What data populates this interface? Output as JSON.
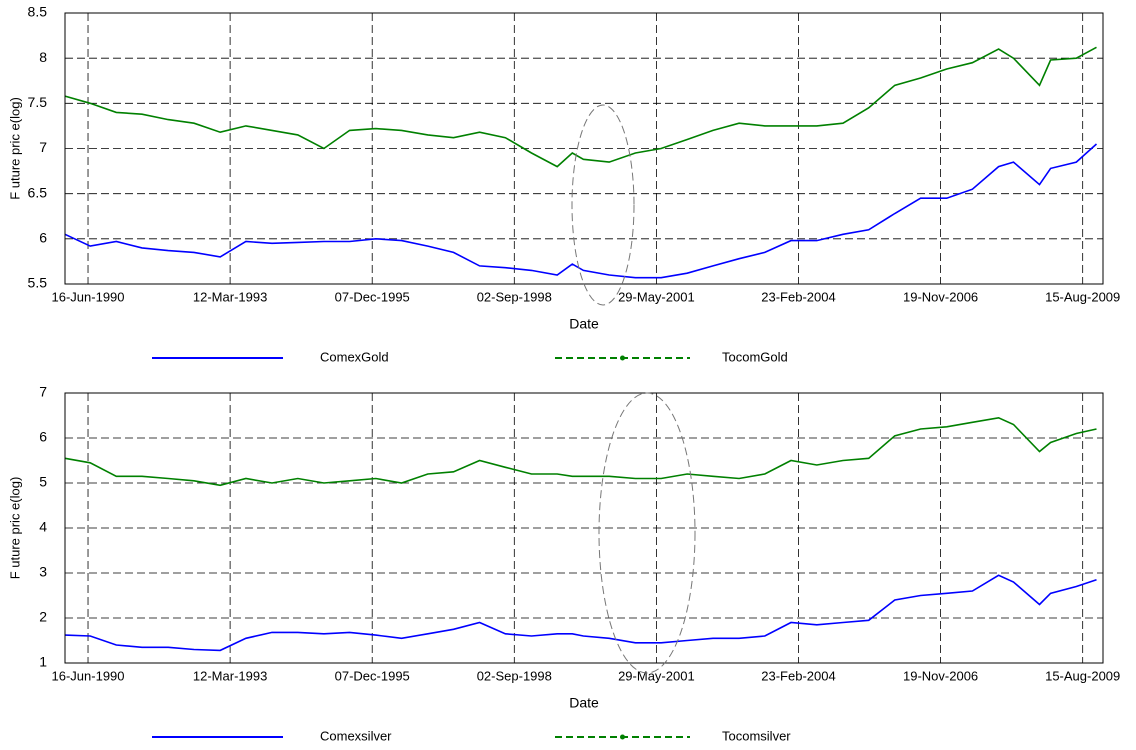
{
  "chart_data": [
    {
      "type": "line",
      "xlabel": "Date",
      "ylabel": "F uture  pric e(log)",
      "xlim": [
        "1990-01-05",
        "2010-01-05"
      ],
      "xticks": [
        {
          "value": "1990-06-16",
          "label": "16-Jun-1990"
        },
        {
          "value": "1993-03-12",
          "label": "12-Mar-1993"
        },
        {
          "value": "1995-12-07",
          "label": "07-Dec-1995"
        },
        {
          "value": "1998-09-02",
          "label": "02-Sep-1998"
        },
        {
          "value": "2001-05-29",
          "label": "29-May-2001"
        },
        {
          "value": "2004-02-23",
          "label": "23-Feb-2004"
        },
        {
          "value": "2006-11-19",
          "label": "19-Nov-2006"
        },
        {
          "value": "2009-08-15",
          "label": "15-Aug-2009"
        }
      ],
      "ylim": [
        5.5,
        8.5
      ],
      "yticks": [
        5.5,
        6,
        6.5,
        7,
        7.5,
        8,
        8.5
      ],
      "grid": true,
      "legend": "below",
      "x": [
        "1990-01-05",
        "1990-07-01",
        "1991-01-01",
        "1991-07-01",
        "1992-01-01",
        "1992-07-01",
        "1993-01-01",
        "1993-07-01",
        "1994-01-01",
        "1994-07-01",
        "1995-01-01",
        "1995-07-01",
        "1996-01-01",
        "1996-07-01",
        "1997-01-01",
        "1997-07-01",
        "1998-01-01",
        "1998-07-01",
        "1999-01-01",
        "1999-07-01",
        "1999-10-15",
        "2000-01-01",
        "2000-07-01",
        "2001-01-01",
        "2001-07-01",
        "2002-01-01",
        "2002-07-01",
        "2003-01-01",
        "2003-07-01",
        "2004-01-01",
        "2004-07-01",
        "2005-01-01",
        "2005-07-01",
        "2006-01-01",
        "2006-07-01",
        "2007-01-01",
        "2007-07-01",
        "2008-01-01",
        "2008-04-15",
        "2008-10-15",
        "2009-01-01",
        "2009-07-01",
        "2009-11-20"
      ],
      "series": [
        {
          "name": "ComexGold",
          "color": "#0000ff",
          "linestyle": "solid",
          "marker": "none",
          "values": [
            6.05,
            5.92,
            5.97,
            5.9,
            5.87,
            5.85,
            5.8,
            5.97,
            5.95,
            5.96,
            5.97,
            5.97,
            6.0,
            5.98,
            5.92,
            5.85,
            5.7,
            5.68,
            5.65,
            5.6,
            5.72,
            5.65,
            5.6,
            5.57,
            5.57,
            5.62,
            5.7,
            5.78,
            5.85,
            5.98,
            5.98,
            6.05,
            6.1,
            6.28,
            6.45,
            6.45,
            6.55,
            6.8,
            6.85,
            6.6,
            6.78,
            6.85,
            7.05
          ]
        },
        {
          "name": "TocomGold",
          "color": "#008000",
          "linestyle": "dashed",
          "marker": "dot",
          "values": [
            7.58,
            7.5,
            7.4,
            7.38,
            7.32,
            7.28,
            7.18,
            7.25,
            7.2,
            7.15,
            7.0,
            7.2,
            7.22,
            7.2,
            7.15,
            7.12,
            7.18,
            7.12,
            6.95,
            6.8,
            6.95,
            6.88,
            6.85,
            6.95,
            7.0,
            7.1,
            7.2,
            7.28,
            7.25,
            7.25,
            7.25,
            7.28,
            7.45,
            7.7,
            7.78,
            7.88,
            7.95,
            8.1,
            8.0,
            7.7,
            7.98,
            8.0,
            8.12
          ]
        }
      ]
    },
    {
      "type": "line",
      "xlabel": "Date",
      "ylabel": "F uture  pric e(log)",
      "xlim": [
        "1990-01-05",
        "2010-01-05"
      ],
      "xticks": [
        {
          "value": "1990-06-16",
          "label": "16-Jun-1990"
        },
        {
          "value": "1993-03-12",
          "label": "12-Mar-1993"
        },
        {
          "value": "1995-12-07",
          "label": "07-Dec-1995"
        },
        {
          "value": "1998-09-02",
          "label": "02-Sep-1998"
        },
        {
          "value": "2001-05-29",
          "label": "29-May-2001"
        },
        {
          "value": "2004-02-23",
          "label": "23-Feb-2004"
        },
        {
          "value": "2006-11-19",
          "label": "19-Nov-2006"
        },
        {
          "value": "2009-08-15",
          "label": "15-Aug-2009"
        }
      ],
      "ylim": [
        1,
        7
      ],
      "yticks": [
        1,
        2,
        3,
        4,
        5,
        6,
        7
      ],
      "grid": true,
      "legend": "below",
      "x": [
        "1990-01-05",
        "1990-07-01",
        "1991-01-01",
        "1991-07-01",
        "1992-01-01",
        "1992-07-01",
        "1993-01-01",
        "1993-07-01",
        "1994-01-01",
        "1994-07-01",
        "1995-01-01",
        "1995-07-01",
        "1996-01-01",
        "1996-07-01",
        "1997-01-01",
        "1997-07-01",
        "1998-01-01",
        "1998-07-01",
        "1999-01-01",
        "1999-07-01",
        "1999-10-15",
        "2000-01-01",
        "2000-07-01",
        "2001-01-01",
        "2001-07-01",
        "2002-01-01",
        "2002-07-01",
        "2003-01-01",
        "2003-07-01",
        "2004-01-01",
        "2004-07-01",
        "2005-01-01",
        "2005-07-01",
        "2006-01-01",
        "2006-07-01",
        "2007-01-01",
        "2007-07-01",
        "2008-01-01",
        "2008-04-15",
        "2008-10-15",
        "2009-01-01",
        "2009-07-01",
        "2009-11-20"
      ],
      "series": [
        {
          "name": "Comexsilver",
          "color": "#0000ff",
          "linestyle": "solid",
          "marker": "none",
          "values": [
            1.62,
            1.6,
            1.4,
            1.35,
            1.35,
            1.3,
            1.28,
            1.55,
            1.68,
            1.68,
            1.65,
            1.68,
            1.62,
            1.55,
            1.65,
            1.75,
            1.9,
            1.65,
            1.6,
            1.65,
            1.65,
            1.6,
            1.55,
            1.45,
            1.45,
            1.5,
            1.55,
            1.55,
            1.6,
            1.9,
            1.85,
            1.9,
            1.95,
            2.4,
            2.5,
            2.55,
            2.6,
            2.95,
            2.8,
            2.3,
            2.55,
            2.7,
            2.85
          ]
        },
        {
          "name": "Tocomsilver",
          "color": "#008000",
          "linestyle": "dashed",
          "marker": "dot",
          "values": [
            5.55,
            5.45,
            5.15,
            5.15,
            5.1,
            5.05,
            4.95,
            5.1,
            5.0,
            5.1,
            5.0,
            5.05,
            5.1,
            5.0,
            5.2,
            5.25,
            5.5,
            5.35,
            5.2,
            5.2,
            5.15,
            5.15,
            5.15,
            5.1,
            5.1,
            5.2,
            5.15,
            5.1,
            5.2,
            5.5,
            5.4,
            5.5,
            5.55,
            6.05,
            6.2,
            6.25,
            6.35,
            6.45,
            6.3,
            5.7,
            5.9,
            6.1,
            6.2
          ]
        }
      ]
    }
  ]
}
